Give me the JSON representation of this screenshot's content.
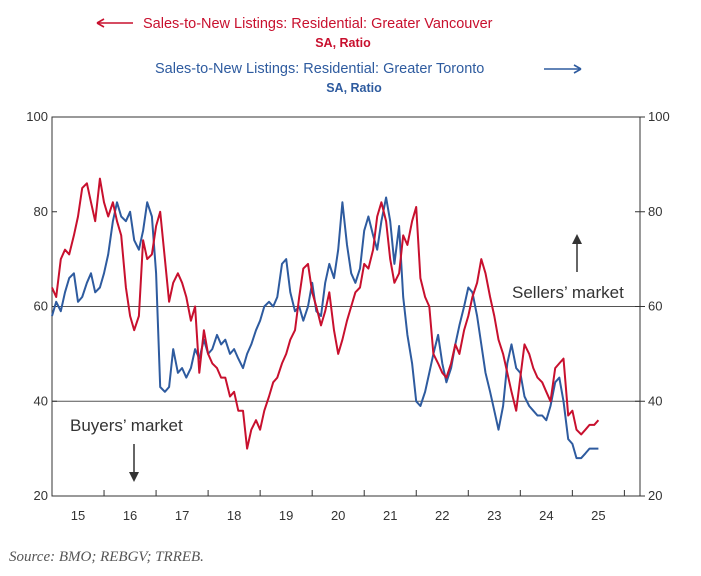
{
  "chart_data": {
    "type": "line",
    "series": [
      {
        "name": "Sales-to-New Listings: Residential: Greater Vancouver",
        "subtitle": "SA, Ratio",
        "axis": "left",
        "color": "#c8102e",
        "x": [
          2014.5,
          2014.58,
          2014.67,
          2014.75,
          2014.83,
          2014.92,
          2015.0,
          2015.08,
          2015.17,
          2015.25,
          2015.33,
          2015.42,
          2015.5,
          2015.58,
          2015.67,
          2015.75,
          2015.83,
          2015.92,
          2016.0,
          2016.08,
          2016.17,
          2016.25,
          2016.33,
          2016.42,
          2016.5,
          2016.58,
          2016.67,
          2016.75,
          2016.83,
          2016.92,
          2017.0,
          2017.08,
          2017.17,
          2017.25,
          2017.33,
          2017.42,
          2017.5,
          2017.58,
          2017.67,
          2017.75,
          2017.83,
          2017.92,
          2018.0,
          2018.08,
          2018.17,
          2018.25,
          2018.33,
          2018.42,
          2018.5,
          2018.58,
          2018.67,
          2018.75,
          2018.83,
          2018.92,
          2019.0,
          2019.08,
          2019.17,
          2019.25,
          2019.33,
          2019.42,
          2019.5,
          2019.58,
          2019.67,
          2019.75,
          2019.83,
          2019.92,
          2020.0,
          2020.08,
          2020.17,
          2020.25,
          2020.33,
          2020.42,
          2020.5,
          2020.58,
          2020.67,
          2020.75,
          2020.83,
          2020.92,
          2021.0,
          2021.08,
          2021.17,
          2021.25,
          2021.33,
          2021.42,
          2021.5,
          2021.58,
          2021.67,
          2021.75,
          2021.83,
          2021.92,
          2022.0,
          2022.08,
          2022.17,
          2022.25,
          2022.33,
          2022.42,
          2022.5,
          2022.58,
          2022.67,
          2022.75,
          2022.83,
          2022.92,
          2023.0,
          2023.08,
          2023.17,
          2023.25,
          2023.33,
          2023.42,
          2023.5,
          2023.58,
          2023.67,
          2023.75,
          2023.83,
          2023.92,
          2024.0,
          2024.08,
          2024.17,
          2024.25,
          2024.33,
          2024.42,
          2024.5,
          2024.58,
          2024.67,
          2024.75,
          2024.83,
          2024.92,
          2025.0
        ],
        "values": [
          64,
          62,
          70,
          72,
          71,
          75,
          79,
          85,
          86,
          82,
          78,
          87,
          82,
          79,
          82,
          78,
          75,
          64,
          58,
          55,
          58,
          74,
          70,
          71,
          77,
          80,
          70,
          61,
          65,
          67,
          65,
          62,
          57,
          60,
          46,
          55,
          50,
          48,
          47,
          45,
          45,
          41,
          42,
          38,
          38,
          30,
          34,
          36,
          34,
          38,
          41,
          44,
          45,
          48,
          50,
          53,
          55,
          62,
          68,
          69,
          63,
          60,
          56,
          59,
          63,
          55,
          50,
          53,
          57,
          60,
          63,
          64,
          69,
          68,
          72,
          79,
          82,
          78,
          70,
          65,
          67,
          75,
          73,
          78,
          81,
          66,
          62,
          60,
          50,
          48,
          46,
          45,
          48,
          52,
          50,
          55,
          58,
          62,
          65,
          70,
          67,
          62,
          58,
          53,
          50,
          46,
          42,
          38,
          45,
          52,
          50,
          47,
          45,
          44,
          42,
          40,
          47,
          48,
          49,
          37,
          38,
          34,
          33,
          34,
          35,
          35,
          36
        ]
      },
      {
        "name": "Sales-to-New Listings: Residential: Greater Toronto",
        "subtitle": "SA, Ratio",
        "axis": "right",
        "color": "#2e5b9f",
        "x": [
          2014.5,
          2014.58,
          2014.67,
          2014.75,
          2014.83,
          2014.92,
          2015.0,
          2015.08,
          2015.17,
          2015.25,
          2015.33,
          2015.42,
          2015.5,
          2015.58,
          2015.67,
          2015.75,
          2015.83,
          2015.92,
          2016.0,
          2016.08,
          2016.17,
          2016.25,
          2016.33,
          2016.42,
          2016.5,
          2016.58,
          2016.67,
          2016.75,
          2016.83,
          2016.92,
          2017.0,
          2017.08,
          2017.17,
          2017.25,
          2017.33,
          2017.42,
          2017.5,
          2017.58,
          2017.67,
          2017.75,
          2017.83,
          2017.92,
          2018.0,
          2018.08,
          2018.17,
          2018.25,
          2018.33,
          2018.42,
          2018.5,
          2018.58,
          2018.67,
          2018.75,
          2018.83,
          2018.92,
          2019.0,
          2019.08,
          2019.17,
          2019.25,
          2019.33,
          2019.42,
          2019.5,
          2019.58,
          2019.67,
          2019.75,
          2019.83,
          2019.92,
          2020.0,
          2020.08,
          2020.17,
          2020.25,
          2020.33,
          2020.42,
          2020.5,
          2020.58,
          2020.67,
          2020.75,
          2020.83,
          2020.92,
          2021.0,
          2021.08,
          2021.17,
          2021.25,
          2021.33,
          2021.42,
          2021.5,
          2021.58,
          2021.67,
          2021.75,
          2021.83,
          2021.92,
          2022.0,
          2022.08,
          2022.17,
          2022.25,
          2022.33,
          2022.42,
          2022.5,
          2022.58,
          2022.67,
          2022.75,
          2022.83,
          2022.92,
          2023.0,
          2023.08,
          2023.17,
          2023.25,
          2023.33,
          2023.42,
          2023.5,
          2023.58,
          2023.67,
          2023.75,
          2023.83,
          2023.92,
          2024.0,
          2024.08,
          2024.17,
          2024.25,
          2024.33,
          2024.42,
          2024.5,
          2024.58,
          2024.67,
          2024.75,
          2024.83,
          2024.92,
          2025.0
        ],
        "values": [
          58,
          61,
          59,
          63,
          66,
          67,
          61,
          62,
          65,
          67,
          63,
          64,
          67,
          71,
          78,
          82,
          79,
          78,
          80,
          74,
          72,
          76,
          82,
          79,
          67,
          43,
          42,
          43,
          51,
          46,
          47,
          45,
          47,
          51,
          49,
          53,
          50,
          51,
          54,
          52,
          53,
          50,
          51,
          49,
          47,
          50,
          52,
          55,
          57,
          60,
          61,
          60,
          62,
          69,
          70,
          63,
          59,
          60,
          57,
          60,
          65,
          59,
          58,
          65,
          69,
          66,
          72,
          82,
          73,
          67,
          65,
          68,
          76,
          79,
          75,
          72,
          78,
          83,
          78,
          69,
          77,
          62,
          54,
          48,
          40,
          39,
          42,
          46,
          50,
          54,
          48,
          44,
          47,
          52,
          56,
          60,
          64,
          63,
          58,
          52,
          46,
          42,
          38,
          34,
          39,
          48,
          52,
          47,
          46,
          41,
          39,
          38,
          37,
          37,
          36,
          39,
          44,
          45,
          40,
          32,
          31,
          28,
          28,
          29,
          30,
          30,
          30
        ]
      }
    ],
    "left_axis": {
      "ylim": [
        20,
        100
      ],
      "ticks": [
        20,
        40,
        60,
        80,
        100
      ],
      "tick_labels": [
        "20",
        "40",
        "60",
        "80",
        "100"
      ]
    },
    "right_axis": {
      "ylim": [
        20,
        100
      ],
      "ticks": [
        20,
        40,
        60,
        80,
        100
      ],
      "tick_labels": [
        "20",
        "40",
        "60",
        "80",
        "100"
      ]
    },
    "x_axis": {
      "xlim": [
        2014.5,
        2025.8
      ],
      "tick_labels": [
        "15",
        "16",
        "17",
        "18",
        "19",
        "20",
        "21",
        "22",
        "23",
        "24",
        "25"
      ],
      "tick_positions": [
        2015,
        2016,
        2017,
        2018,
        2019,
        2020,
        2021,
        2022,
        2023,
        2024,
        2025
      ]
    },
    "reference_lines": [
      60,
      40
    ],
    "annotations": {
      "sellers": "Sellers’ market",
      "buyers": "Buyers’ market"
    },
    "source": "Source: BMO; REBGV; TRREB."
  }
}
